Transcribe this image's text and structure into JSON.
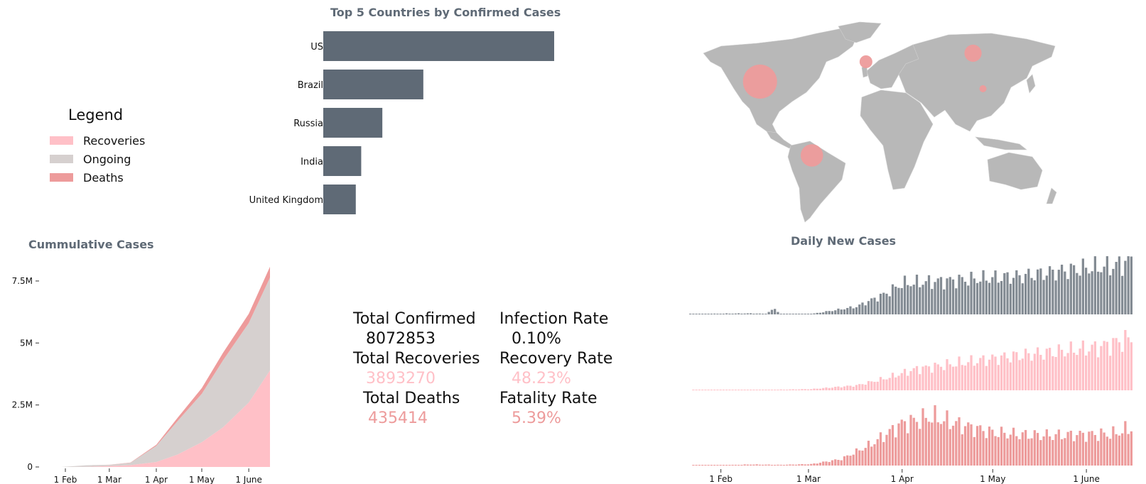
{
  "colors": {
    "recoveries": "#ffc0c7",
    "ongoing": "#d6d0cf",
    "deaths": "#ed9b9b",
    "confirmed": "#5f6a76",
    "land": "#b8b8b8"
  },
  "legend": {
    "title": "Legend",
    "items": [
      {
        "label": "Recoveries",
        "color": "#ffc0c7"
      },
      {
        "label": "Ongoing",
        "color": "#d6d0cf"
      },
      {
        "label": "Deaths",
        "color": "#ed9b9b"
      }
    ]
  },
  "top5": {
    "title": "Top 5 Countries by Confirmed Cases",
    "countries": [
      "US",
      "Brazil",
      "Russia",
      "India",
      "United Kingdom"
    ],
    "values": [
      2130000,
      923000,
      545000,
      350000,
      300000
    ]
  },
  "map": {
    "bubbles": [
      {
        "place": "US",
        "lat": 40,
        "lon": -98,
        "value": 2130000
      },
      {
        "place": "Brazil",
        "lat": -12,
        "lon": -51,
        "value": 923000
      },
      {
        "place": "Russia",
        "lat": 60,
        "lon": 95,
        "value": 545000
      },
      {
        "place": "China",
        "lat": 35,
        "lon": 104,
        "value": 84000
      },
      {
        "place": "United Kingdom",
        "lat": 54,
        "lon": -2,
        "value": 300000
      }
    ]
  },
  "cumulative": {
    "title": "Cummulative Cases",
    "yticks": [
      "0",
      "2.5M",
      "5M",
      "7.5M"
    ],
    "ytick_values": [
      0,
      2500000,
      5000000,
      7500000
    ],
    "xticks": [
      "1 Feb",
      "1 Mar",
      "1 Apr",
      "1 May",
      "1 June"
    ]
  },
  "stats": {
    "total_confirmed_label": "Total Confirmed",
    "total_confirmed": "8072853",
    "total_recoveries_label": "Total Recoveries",
    "total_recoveries": "3893270",
    "total_deaths_label": "Total Deaths",
    "total_deaths": "435414",
    "infection_rate_label": "Infection Rate",
    "infection_rate": "0.10%",
    "recovery_rate_label": "Recovery Rate",
    "recovery_rate": "48.23%",
    "fatality_rate_label": "Fatality Rate",
    "fatality_rate": "5.39%"
  },
  "daily": {
    "title": "Daily New Cases",
    "xticks": [
      "1 Feb",
      "1 Mar",
      "1 Apr",
      "1 May",
      "1 June"
    ]
  },
  "chart_data": [
    {
      "type": "bar",
      "title": "Top 5 Countries by Confirmed Cases",
      "orientation": "horizontal",
      "categories": [
        "US",
        "Brazil",
        "Russia",
        "India",
        "United Kingdom"
      ],
      "values": [
        2130000,
        923000,
        545000,
        350000,
        300000
      ],
      "grid": false
    },
    {
      "type": "area",
      "title": "Cummulative Cases",
      "stacked": true,
      "x": [
        "2020-01-22",
        "2020-02-01",
        "2020-02-15",
        "2020-03-01",
        "2020-03-15",
        "2020-04-01",
        "2020-04-15",
        "2020-05-01",
        "2020-05-15",
        "2020-06-01",
        "2020-06-15"
      ],
      "series": [
        {
          "name": "Recoveries",
          "values": [
            0,
            300,
            5000,
            40000,
            75000,
            200000,
            500000,
            1000000,
            1600000,
            2600000,
            3893270
          ]
        },
        {
          "name": "Ongoing",
          "values": [
            500,
            11000,
            63000,
            45000,
            95000,
            650000,
            1350000,
            1950000,
            2700000,
            3200000,
            3744169
          ]
        },
        {
          "name": "Deaths",
          "values": [
            17,
            300,
            1500,
            3000,
            6500,
            47000,
            130000,
            230000,
            305000,
            375000,
            435414
          ]
        }
      ],
      "yticks": [
        "0",
        "2.5M",
        "5M",
        "7.5M"
      ],
      "ylim": [
        0,
        8300000
      ],
      "xticks": [
        "1 Feb",
        "1 Mar",
        "1 Apr",
        "1 May",
        "1 June"
      ],
      "grid": false
    },
    {
      "type": "bar",
      "title": "Daily New Cases",
      "x_start": "2020-01-22",
      "x_end": "2020-06-15",
      "xticks": [
        "1 Feb",
        "1 Mar",
        "1 Apr",
        "1 May",
        "1 June"
      ],
      "series": [
        {
          "name": "Confirmed",
          "keypoints": [
            [
              0,
              100
            ],
            [
              10,
              2000
            ],
            [
              20,
              2500
            ],
            [
              25,
              1500
            ],
            [
              28,
              15000
            ],
            [
              30,
              500
            ],
            [
              40,
              1000
            ],
            [
              55,
              20000
            ],
            [
              65,
              55000
            ],
            [
              70,
              80000
            ],
            [
              80,
              85000
            ],
            [
              90,
              90000
            ],
            [
              100,
              95000
            ],
            [
              110,
              100000
            ],
            [
              120,
              110000
            ],
            [
              130,
              120000
            ],
            [
              140,
              125000
            ],
            [
              146,
              140000
            ]
          ]
        },
        {
          "name": "Recoveries",
          "keypoints": [
            [
              0,
              0
            ],
            [
              10,
              100
            ],
            [
              20,
              300
            ],
            [
              40,
              2000
            ],
            [
              55,
              8000
            ],
            [
              65,
              20000
            ],
            [
              75,
              35000
            ],
            [
              90,
              45000
            ],
            [
              105,
              55000
            ],
            [
              115,
              60000
            ],
            [
              125,
              65000
            ],
            [
              135,
              70000
            ],
            [
              146,
              85000
            ]
          ]
        },
        {
          "name": "Deaths",
          "keypoints": [
            [
              0,
              0
            ],
            [
              10,
              50
            ],
            [
              20,
              150
            ],
            [
              30,
              100
            ],
            [
              40,
              200
            ],
            [
              50,
              900
            ],
            [
              60,
              3000
            ],
            [
              70,
              5800
            ],
            [
              80,
              6800
            ],
            [
              90,
              5600
            ],
            [
              100,
              4600
            ],
            [
              110,
              4300
            ],
            [
              120,
              4200
            ],
            [
              130,
              4300
            ],
            [
              140,
              4400
            ],
            [
              146,
              5200
            ]
          ]
        }
      ],
      "grid": false
    }
  ]
}
